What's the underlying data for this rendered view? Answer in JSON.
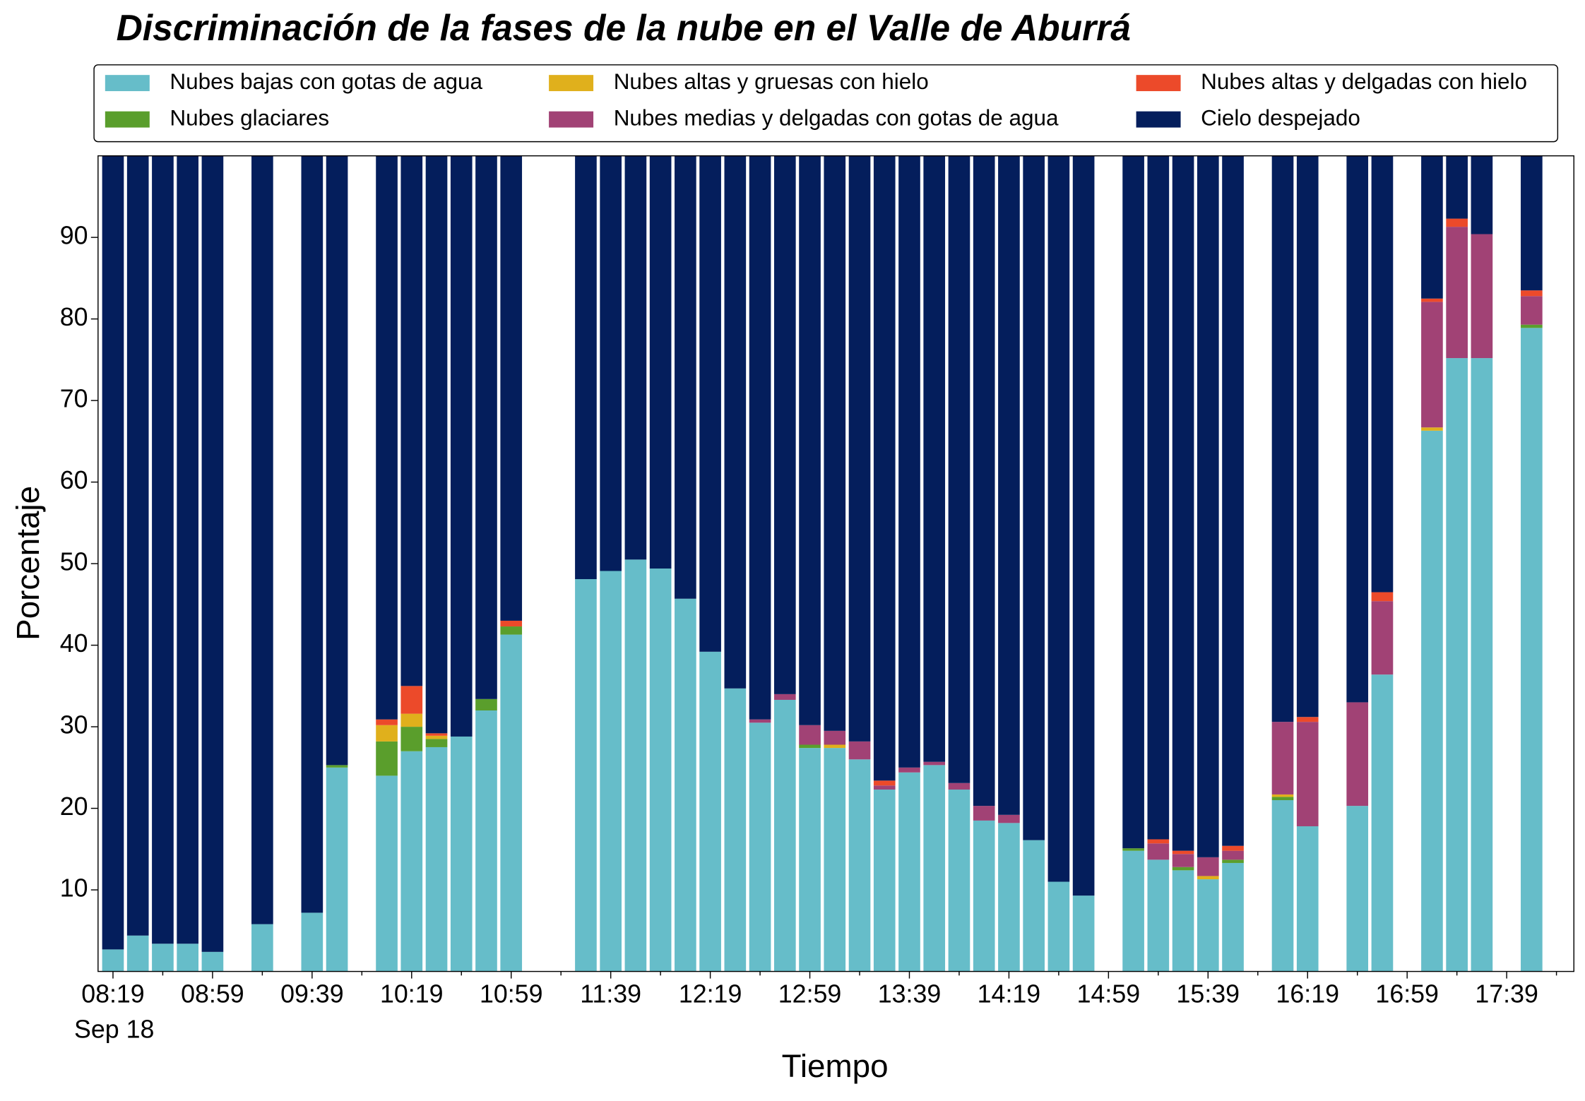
{
  "chart_data": {
    "type": "stacked_bar",
    "title": "Discriminación de la fases de la nube en el Valle de Aburrá",
    "xlabel": "Tiempo",
    "ylabel": "Porcentaje",
    "x": [
      "08:19",
      "08:29",
      "08:39",
      "08:49",
      "08:59",
      "09:19",
      "09:39",
      "09:49",
      "10:09",
      "10:19",
      "10:29",
      "10:39",
      "10:49",
      "10:59",
      "11:29",
      "11:39",
      "11:49",
      "11:59",
      "12:09",
      "12:19",
      "12:29",
      "12:39",
      "12:49",
      "12:59",
      "13:09",
      "13:19",
      "13:29",
      "13:39",
      "13:49",
      "13:59",
      "14:09",
      "14:19",
      "14:29",
      "14:39",
      "14:49",
      "15:09",
      "15:19",
      "15:29",
      "15:39",
      "15:49",
      "16:09",
      "16:19",
      "16:39",
      "16:49",
      "17:09",
      "17:19",
      "17:29",
      "17:49"
    ],
    "xlim": [
      "08:13",
      "18:06"
    ],
    "xticks": [
      "08:19",
      "08:59",
      "09:39",
      "10:19",
      "10:59",
      "11:39",
      "12:19",
      "12:59",
      "13:39",
      "14:19",
      "14:59",
      "15:39",
      "16:19",
      "16:59",
      "17:39"
    ],
    "xminorticks": [
      "08:39",
      "09:19",
      "09:59",
      "10:39",
      "11:19",
      "11:59",
      "12:39",
      "13:19",
      "13:59",
      "14:39",
      "15:19",
      "15:59",
      "16:39",
      "17:19",
      "17:59"
    ],
    "xdate_label": "Sep 18",
    "ylim": [
      0,
      100
    ],
    "yticks": [
      10,
      20,
      30,
      40,
      50,
      60,
      70,
      80,
      90
    ],
    "legend": "top",
    "series": [
      {
        "name": "Nubes bajas con gotas de agua",
        "color": "#66bdc9",
        "values": [
          2.7,
          4.4,
          3.4,
          3.4,
          2.4,
          5.8,
          7.2,
          25,
          24,
          27,
          27.5,
          28.8,
          32,
          41.3,
          48.1,
          49.1,
          50.5,
          49.4,
          45.7,
          39.2,
          34.7,
          30.5,
          33.3,
          27.4,
          27.4,
          26,
          22.3,
          24.4,
          25.3,
          22.3,
          18.5,
          18.2,
          16.1,
          11,
          9.3,
          14.8,
          13.7,
          12.4,
          11.3,
          13.3,
          21,
          17.8,
          20.3,
          36.4,
          66.3,
          75.2,
          75.2,
          78.9
        ]
      },
      {
        "name": "Nubes glaciares",
        "color": "#5a9e2c",
        "values": [
          0,
          0,
          0,
          0,
          0,
          0,
          0,
          0.3,
          4.2,
          3,
          1,
          0,
          1.4,
          1,
          0,
          0,
          0,
          0,
          0,
          0,
          0,
          0,
          0,
          0.4,
          0,
          0,
          0,
          0,
          0,
          0,
          0,
          0,
          0,
          0,
          0,
          0.3,
          0,
          0.4,
          0,
          0.4,
          0.4,
          0,
          0,
          0,
          0,
          0,
          0,
          0.4
        ]
      },
      {
        "name": "Nubes altas y gruesas con hielo",
        "color": "#e0b01c",
        "values": [
          0,
          0,
          0,
          0,
          0,
          0,
          0,
          0,
          2,
          1.6,
          0.4,
          0,
          0,
          0,
          0,
          0,
          0,
          0,
          0,
          0,
          0,
          0,
          0,
          0,
          0.4,
          0,
          0,
          0,
          0,
          0,
          0,
          0,
          0,
          0,
          0,
          0,
          0,
          0,
          0.4,
          0,
          0.3,
          0,
          0,
          0,
          0.4,
          0,
          0,
          0
        ]
      },
      {
        "name": "Nubes medias y delgadas con gotas de agua",
        "color": "#a14275",
        "values": [
          0,
          0,
          0,
          0,
          0,
          0,
          0,
          0,
          0,
          0,
          0,
          0,
          0,
          0,
          0,
          0,
          0,
          0,
          0,
          0,
          0,
          0.4,
          0.7,
          2.4,
          1.7,
          2.2,
          0.5,
          0.6,
          0.4,
          0.8,
          1.8,
          1,
          0,
          0,
          0,
          0,
          2,
          1.6,
          2.3,
          1.1,
          8.9,
          12.8,
          12.7,
          9,
          15.4,
          16.1,
          15.2,
          3.5
        ]
      },
      {
        "name": "Nubes altas y delgadas con hielo",
        "color": "#ec4a2a",
        "values": [
          0,
          0,
          0,
          0,
          0,
          0,
          0,
          0,
          0.7,
          3.4,
          0.3,
          0,
          0,
          0.7,
          0,
          0,
          0,
          0,
          0,
          0,
          0,
          0,
          0,
          0,
          0,
          0,
          0.6,
          0,
          0,
          0,
          0,
          0,
          0,
          0,
          0,
          0,
          0.5,
          0.4,
          0,
          0.6,
          0,
          0.6,
          0,
          1.1,
          0.4,
          1,
          0,
          0.7
        ]
      },
      {
        "name": "Cielo despejado",
        "color": "#041e5c",
        "values": [
          97.3,
          95.6,
          96.6,
          96.6,
          97.6,
          94.2,
          92.8,
          74.7,
          69.1,
          65,
          70.8,
          71.2,
          66.6,
          57,
          51.9,
          50.9,
          49.5,
          50.6,
          54.3,
          60.8,
          65.3,
          69.1,
          66,
          69.8,
          70.5,
          71.8,
          76.6,
          75,
          74.3,
          76.9,
          79.7,
          80.8,
          83.9,
          89,
          90.7,
          84.9,
          83.8,
          85.2,
          86,
          84.6,
          69.4,
          68.8,
          67,
          53.5,
          17.5,
          7.7,
          9.6,
          16.5
        ]
      }
    ]
  }
}
